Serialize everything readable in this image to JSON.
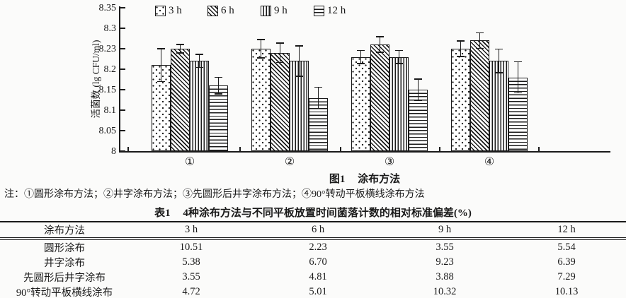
{
  "figure": {
    "ylabel": "活菌数 (lg CFU/ml)",
    "caption_prefix": "图1",
    "caption_text": "涂布方法",
    "note": "注：①圆形涂布方法；②井字涂布方法；③先圆形后井字涂布方法；④90°转动平板横线涂布方法"
  },
  "chart_data": {
    "type": "bar",
    "title": "图1 涂布方法",
    "xlabel": "涂布方法",
    "ylabel": "活菌数 (lg CFU/ml)",
    "ylim": [
      8.0,
      8.35
    ],
    "y_tick_labels": [
      "8.35",
      "8.3",
      "8.23",
      "8.2",
      "8.15",
      "8.1",
      "8.05",
      "8"
    ],
    "grid": false,
    "legend_position": "top",
    "categories": [
      "①",
      "②",
      "③",
      "④"
    ],
    "series": [
      {
        "name": "3 h",
        "pattern": "dots",
        "values": [
          8.21,
          8.25,
          8.23,
          8.25
        ],
        "errors": [
          0.04,
          0.022,
          0.016,
          0.019
        ]
      },
      {
        "name": "6 h",
        "pattern": "diagonal-hatch",
        "values": [
          8.25,
          8.24,
          8.26,
          8.27
        ],
        "errors": [
          0.01,
          0.024,
          0.019,
          0.019
        ]
      },
      {
        "name": "9 h",
        "pattern": "vertical-lines",
        "values": [
          8.22,
          8.22,
          8.23,
          8.22
        ],
        "errors": [
          0.016,
          0.037,
          0.016,
          0.029
        ]
      },
      {
        "name": "12 h",
        "pattern": "horizontal-lines",
        "values": [
          8.16,
          8.13,
          8.15,
          8.18
        ],
        "errors": [
          0.02,
          0.026,
          0.026,
          0.038
        ]
      }
    ]
  },
  "table": {
    "title_prefix": "表1",
    "title_text": "4种涂布方法与不同平板放置时间菌落计数的相对标准偏差(%)",
    "headers": [
      "涂布方法",
      "3 h",
      "6 h",
      "9 h",
      "12 h"
    ],
    "rows": [
      {
        "label": "圆形涂布",
        "values": [
          "10.51",
          "2.23",
          "3.55",
          "5.54"
        ]
      },
      {
        "label": "井字涂布",
        "values": [
          "5.38",
          "6.70",
          "9.23",
          "6.39"
        ]
      },
      {
        "label": "先圆形后井字涂布",
        "values": [
          "3.55",
          "4.81",
          "3.88",
          "7.29"
        ]
      },
      {
        "label": "90°转动平板横线涂布",
        "values": [
          "4.72",
          "5.01",
          "10.32",
          "10.13"
        ]
      }
    ]
  },
  "colors": {
    "ink": "#1a1a1a",
    "background": "#fbfbfa",
    "bar_fill": "#ffffff"
  }
}
